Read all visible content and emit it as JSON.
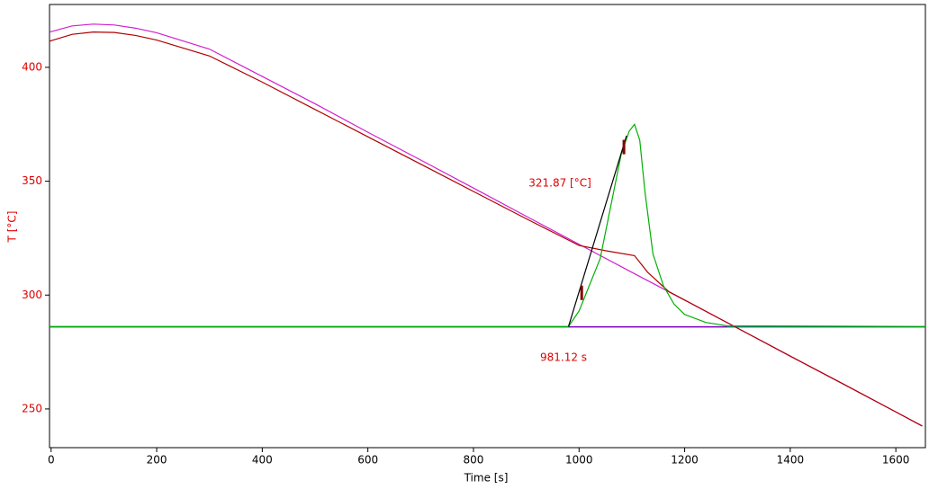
{
  "chart_data": {
    "type": "line",
    "xlabel": "Time [s]",
    "ylabel": "T  [°C]",
    "xlim": [
      -3,
      1656
    ],
    "ylim": [
      233,
      427.6
    ],
    "xticks": [
      0,
      200,
      400,
      600,
      800,
      1000,
      1200,
      1400,
      1600
    ],
    "yticks": [
      250,
      300,
      350,
      400
    ],
    "annotations": [
      "321.87 [°C]",
      "981.12 s"
    ],
    "series": [
      {
        "color": "#006070",
        "x": [
          -3,
          1656
        ],
        "values": [
          286,
          286
        ]
      },
      {
        "color": "#8000c0",
        "x": [
          980,
          1280
        ],
        "values": [
          286.1,
          286.1
        ]
      },
      {
        "color": "#d020d0",
        "x": [
          -3,
          40,
          80,
          120,
          160,
          200,
          300,
          400,
          500,
          600,
          700,
          800,
          900,
          1000,
          1100,
          1200,
          1300,
          1400,
          1500,
          1600,
          1650
        ],
        "values": [
          415.5,
          418.2,
          419,
          418.6,
          417.2,
          415.2,
          408,
          396,
          384,
          371.5,
          359.3,
          347,
          334.6,
          322.3,
          310,
          297.8,
          285.5,
          273.2,
          261,
          248.7,
          242.5
        ]
      },
      {
        "color": "#b00000",
        "x": [
          -3,
          40,
          80,
          120,
          160,
          200,
          300,
          400,
          500,
          600,
          700,
          800,
          900,
          1000,
          1050,
          1105,
          1130,
          1170,
          1200,
          1300,
          1400,
          1500,
          1600,
          1650
        ],
        "values": [
          411.5,
          414.5,
          415.5,
          415.3,
          414,
          412,
          405,
          393.5,
          381.5,
          369.5,
          357.5,
          345.5,
          333.5,
          321.8,
          319.5,
          317.3,
          310,
          301.5,
          297.8,
          285.5,
          273.2,
          261,
          248.7,
          242.5
        ]
      },
      {
        "color": "#00b000",
        "x": [
          -3,
          980,
          1000,
          1040,
          1080,
          1095,
          1105,
          1115,
          1125,
          1140,
          1160,
          1180,
          1200,
          1240,
          1280,
          1656
        ],
        "values": [
          286.2,
          286.2,
          293,
          316,
          362,
          372,
          375,
          368,
          345,
          318,
          304,
          296,
          291.5,
          288,
          286.5,
          286.2
        ]
      },
      {
        "color": "#000000",
        "x": [
          980,
          1090
        ],
        "values": [
          286.2,
          370
        ]
      },
      {
        "color": "#800000",
        "style": "marker",
        "x": [
          1005,
          1085
        ],
        "values": [
          301,
          365
        ]
      }
    ]
  }
}
